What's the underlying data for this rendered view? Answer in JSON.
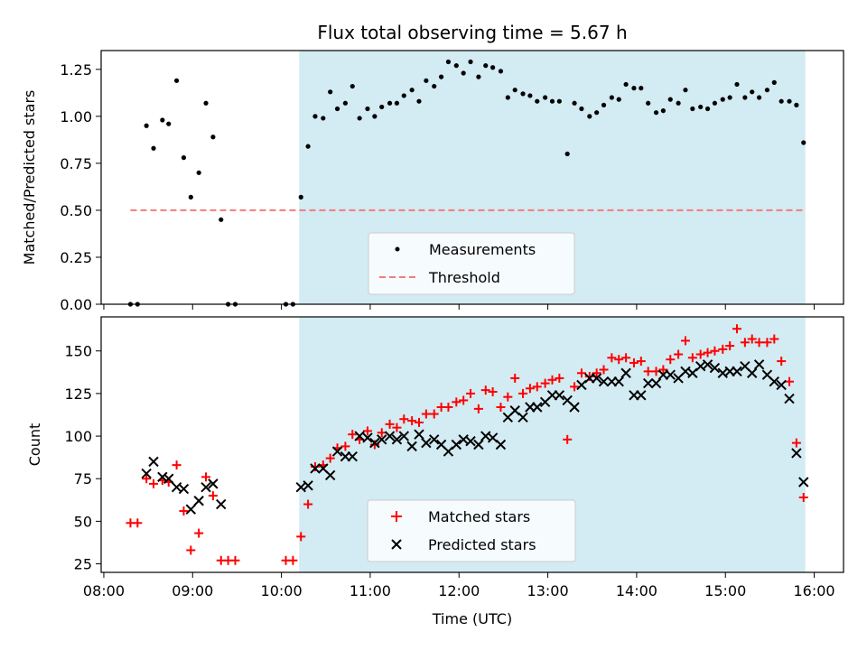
{
  "chart_data": [
    {
      "type": "scatter",
      "title": "Flux total observing time = 5.67 h",
      "xlabel": "",
      "ylabel": "Matched/Predicted stars",
      "ylim": [
        0,
        1.35
      ],
      "xlim_hours": [
        7.97,
        16.33
      ],
      "yticks": [
        "0.00",
        "0.25",
        "0.50",
        "0.75",
        "1.00",
        "1.25"
      ],
      "shaded_x_hours": [
        10.2,
        15.9
      ],
      "shaded_color": "#d3ebf2",
      "legend_position": "lower-center",
      "series": [
        {
          "name": "Measurements",
          "marker": "dot",
          "color": "#000000",
          "points": [
            [
              8.3,
              0
            ],
            [
              8.38,
              0
            ],
            [
              8.48,
              0.95
            ],
            [
              8.56,
              0.83
            ],
            [
              8.66,
              0.98
            ],
            [
              8.73,
              0.96
            ],
            [
              8.82,
              1.19
            ],
            [
              8.9,
              0.78
            ],
            [
              8.98,
              0.57
            ],
            [
              9.07,
              0.7
            ],
            [
              9.15,
              1.07
            ],
            [
              9.23,
              0.89
            ],
            [
              9.32,
              0.45
            ],
            [
              9.4,
              0
            ],
            [
              9.48,
              0
            ],
            [
              10.05,
              0
            ],
            [
              10.13,
              0
            ],
            [
              10.22,
              0.57
            ],
            [
              10.3,
              0.84
            ],
            [
              10.38,
              1.0
            ],
            [
              10.47,
              0.99
            ],
            [
              10.55,
              1.13
            ],
            [
              10.63,
              1.04
            ],
            [
              10.72,
              1.07
            ],
            [
              10.8,
              1.16
            ],
            [
              10.88,
              0.99
            ],
            [
              10.97,
              1.04
            ],
            [
              11.05,
              1.0
            ],
            [
              11.13,
              1.05
            ],
            [
              11.22,
              1.07
            ],
            [
              11.3,
              1.07
            ],
            [
              11.38,
              1.11
            ],
            [
              11.47,
              1.14
            ],
            [
              11.55,
              1.08
            ],
            [
              11.63,
              1.19
            ],
            [
              11.72,
              1.16
            ],
            [
              11.8,
              1.21
            ],
            [
              11.88,
              1.29
            ],
            [
              11.97,
              1.27
            ],
            [
              12.05,
              1.23
            ],
            [
              12.13,
              1.29
            ],
            [
              12.22,
              1.21
            ],
            [
              12.3,
              1.27
            ],
            [
              12.38,
              1.26
            ],
            [
              12.47,
              1.24
            ],
            [
              12.55,
              1.1
            ],
            [
              12.63,
              1.14
            ],
            [
              12.72,
              1.12
            ],
            [
              12.8,
              1.11
            ],
            [
              12.88,
              1.08
            ],
            [
              12.97,
              1.1
            ],
            [
              13.05,
              1.08
            ],
            [
              13.13,
              1.08
            ],
            [
              13.22,
              0.8
            ],
            [
              13.3,
              1.07
            ],
            [
              13.38,
              1.04
            ],
            [
              13.47,
              1.0
            ],
            [
              13.55,
              1.02
            ],
            [
              13.63,
              1.06
            ],
            [
              13.72,
              1.1
            ],
            [
              13.8,
              1.09
            ],
            [
              13.88,
              1.17
            ],
            [
              13.97,
              1.15
            ],
            [
              14.05,
              1.15
            ],
            [
              14.13,
              1.07
            ],
            [
              14.22,
              1.02
            ],
            [
              14.3,
              1.03
            ],
            [
              14.38,
              1.09
            ],
            [
              14.47,
              1.07
            ],
            [
              14.55,
              1.14
            ],
            [
              14.63,
              1.04
            ],
            [
              14.72,
              1.05
            ],
            [
              14.8,
              1.04
            ],
            [
              14.88,
              1.07
            ],
            [
              14.97,
              1.09
            ],
            [
              15.05,
              1.1
            ],
            [
              15.13,
              1.17
            ],
            [
              15.22,
              1.1
            ],
            [
              15.3,
              1.13
            ],
            [
              15.38,
              1.1
            ],
            [
              15.47,
              1.14
            ],
            [
              15.55,
              1.18
            ],
            [
              15.63,
              1.08
            ],
            [
              15.72,
              1.08
            ],
            [
              15.8,
              1.06
            ],
            [
              15.88,
              0.86
            ]
          ]
        },
        {
          "name": "Threshold",
          "marker": "dashed-line",
          "color": "#f47b7b",
          "points": [
            [
              8.3,
              0.5
            ],
            [
              15.88,
              0.5
            ]
          ]
        }
      ]
    },
    {
      "type": "scatter",
      "title": "",
      "xlabel": "Time (UTC)",
      "ylabel": "Count",
      "ylim": [
        20,
        170
      ],
      "xlim_hours": [
        7.97,
        16.33
      ],
      "xticks": [
        "08:00",
        "09:00",
        "10:00",
        "11:00",
        "12:00",
        "13:00",
        "14:00",
        "15:00",
        "16:00"
      ],
      "yticks": [
        "25",
        "50",
        "75",
        "100",
        "125",
        "150"
      ],
      "shaded_x_hours": [
        10.2,
        15.9
      ],
      "shaded_color": "#d3ebf2",
      "legend_position": "lower-center",
      "series": [
        {
          "name": "Matched stars",
          "marker": "plus",
          "color": "#ff0000",
          "points": [
            [
              8.3,
              49
            ],
            [
              8.38,
              49
            ],
            [
              8.48,
              75
            ],
            [
              8.56,
              72
            ],
            [
              8.66,
              74
            ],
            [
              8.73,
              73
            ],
            [
              8.82,
              83
            ],
            [
              8.9,
              56
            ],
            [
              8.98,
              33
            ],
            [
              9.07,
              43
            ],
            [
              9.15,
              76
            ],
            [
              9.23,
              65
            ],
            [
              9.32,
              27
            ],
            [
              9.4,
              27
            ],
            [
              9.48,
              27
            ],
            [
              10.05,
              27
            ],
            [
              10.13,
              27
            ],
            [
              10.22,
              41
            ],
            [
              10.3,
              60
            ],
            [
              10.38,
              82
            ],
            [
              10.47,
              83
            ],
            [
              10.55,
              87
            ],
            [
              10.63,
              93
            ],
            [
              10.72,
              94
            ],
            [
              10.8,
              101
            ],
            [
              10.88,
              98
            ],
            [
              10.97,
              103
            ],
            [
              11.05,
              95
            ],
            [
              11.13,
              102
            ],
            [
              11.22,
              107
            ],
            [
              11.3,
              105
            ],
            [
              11.38,
              110
            ],
            [
              11.47,
              109
            ],
            [
              11.55,
              108
            ],
            [
              11.63,
              113
            ],
            [
              11.72,
              113
            ],
            [
              11.8,
              117
            ],
            [
              11.88,
              117
            ],
            [
              11.97,
              120
            ],
            [
              12.05,
              121
            ],
            [
              12.13,
              125
            ],
            [
              12.22,
              116
            ],
            [
              12.3,
              127
            ],
            [
              12.38,
              126
            ],
            [
              12.47,
              117
            ],
            [
              12.55,
              123
            ],
            [
              12.63,
              134
            ],
            [
              12.72,
              125
            ],
            [
              12.8,
              128
            ],
            [
              12.88,
              129
            ],
            [
              12.97,
              131
            ],
            [
              13.05,
              133
            ],
            [
              13.13,
              134
            ],
            [
              13.22,
              98
            ],
            [
              13.3,
              129
            ],
            [
              13.38,
              137
            ],
            [
              13.47,
              135
            ],
            [
              13.55,
              137
            ],
            [
              13.63,
              139
            ],
            [
              13.72,
              146
            ],
            [
              13.8,
              145
            ],
            [
              13.88,
              146
            ],
            [
              13.97,
              143
            ],
            [
              14.05,
              144
            ],
            [
              14.13,
              138
            ],
            [
              14.22,
              138
            ],
            [
              14.3,
              139
            ],
            [
              14.38,
              145
            ],
            [
              14.47,
              148
            ],
            [
              14.55,
              156
            ],
            [
              14.63,
              146
            ],
            [
              14.72,
              148
            ],
            [
              14.8,
              149
            ],
            [
              14.88,
              150
            ],
            [
              14.97,
              151
            ],
            [
              15.05,
              153
            ],
            [
              15.13,
              163
            ],
            [
              15.22,
              155
            ],
            [
              15.3,
              157
            ],
            [
              15.38,
              155
            ],
            [
              15.47,
              155
            ],
            [
              15.55,
              157
            ],
            [
              15.63,
              144
            ],
            [
              15.72,
              132
            ],
            [
              15.8,
              96
            ],
            [
              15.88,
              64
            ]
          ]
        },
        {
          "name": "Predicted stars",
          "marker": "x",
          "color": "#000000",
          "points": [
            [
              8.48,
              78
            ],
            [
              8.56,
              85
            ],
            [
              8.66,
              76
            ],
            [
              8.73,
              75
            ],
            [
              8.82,
              70
            ],
            [
              8.9,
              69
            ],
            [
              8.98,
              57
            ],
            [
              9.07,
              62
            ],
            [
              9.15,
              70
            ],
            [
              9.23,
              72
            ],
            [
              9.32,
              60
            ],
            [
              10.22,
              70
            ],
            [
              10.3,
              71
            ],
            [
              10.38,
              81
            ],
            [
              10.47,
              81
            ],
            [
              10.55,
              77
            ],
            [
              10.63,
              91
            ],
            [
              10.72,
              88
            ],
            [
              10.8,
              88
            ],
            [
              10.88,
              100
            ],
            [
              10.97,
              99
            ],
            [
              11.05,
              96
            ],
            [
              11.13,
              98
            ],
            [
              11.22,
              100
            ],
            [
              11.3,
              98
            ],
            [
              11.38,
              100
            ],
            [
              11.47,
              94
            ],
            [
              11.55,
              101
            ],
            [
              11.63,
              96
            ],
            [
              11.72,
              98
            ],
            [
              11.8,
              95
            ],
            [
              11.88,
              91
            ],
            [
              11.97,
              95
            ],
            [
              12.05,
              98
            ],
            [
              12.13,
              97
            ],
            [
              12.22,
              95
            ],
            [
              12.3,
              100
            ],
            [
              12.38,
              99
            ],
            [
              12.47,
              95
            ],
            [
              12.55,
              111
            ],
            [
              12.63,
              115
            ],
            [
              12.72,
              111
            ],
            [
              12.8,
              117
            ],
            [
              12.88,
              117
            ],
            [
              12.97,
              120
            ],
            [
              13.05,
              124
            ],
            [
              13.13,
              124
            ],
            [
              13.22,
              121
            ],
            [
              13.3,
              117
            ],
            [
              13.38,
              130
            ],
            [
              13.47,
              134
            ],
            [
              13.55,
              134
            ],
            [
              13.63,
              132
            ],
            [
              13.72,
              132
            ],
            [
              13.8,
              132
            ],
            [
              13.88,
              137
            ],
            [
              13.97,
              124
            ],
            [
              14.05,
              124
            ],
            [
              14.13,
              131
            ],
            [
              14.22,
              131
            ],
            [
              14.3,
              136
            ],
            [
              14.38,
              136
            ],
            [
              14.47,
              134
            ],
            [
              14.55,
              138
            ],
            [
              14.63,
              137
            ],
            [
              14.72,
              141
            ],
            [
              14.8,
              142
            ],
            [
              14.88,
              140
            ],
            [
              14.97,
              137
            ],
            [
              15.05,
              138
            ],
            [
              15.13,
              138
            ],
            [
              15.22,
              141
            ],
            [
              15.3,
              137
            ],
            [
              15.38,
              142
            ],
            [
              15.47,
              136
            ],
            [
              15.55,
              132
            ],
            [
              15.63,
              130
            ],
            [
              15.72,
              122
            ],
            [
              15.8,
              90
            ],
            [
              15.88,
              73
            ]
          ]
        }
      ]
    }
  ]
}
